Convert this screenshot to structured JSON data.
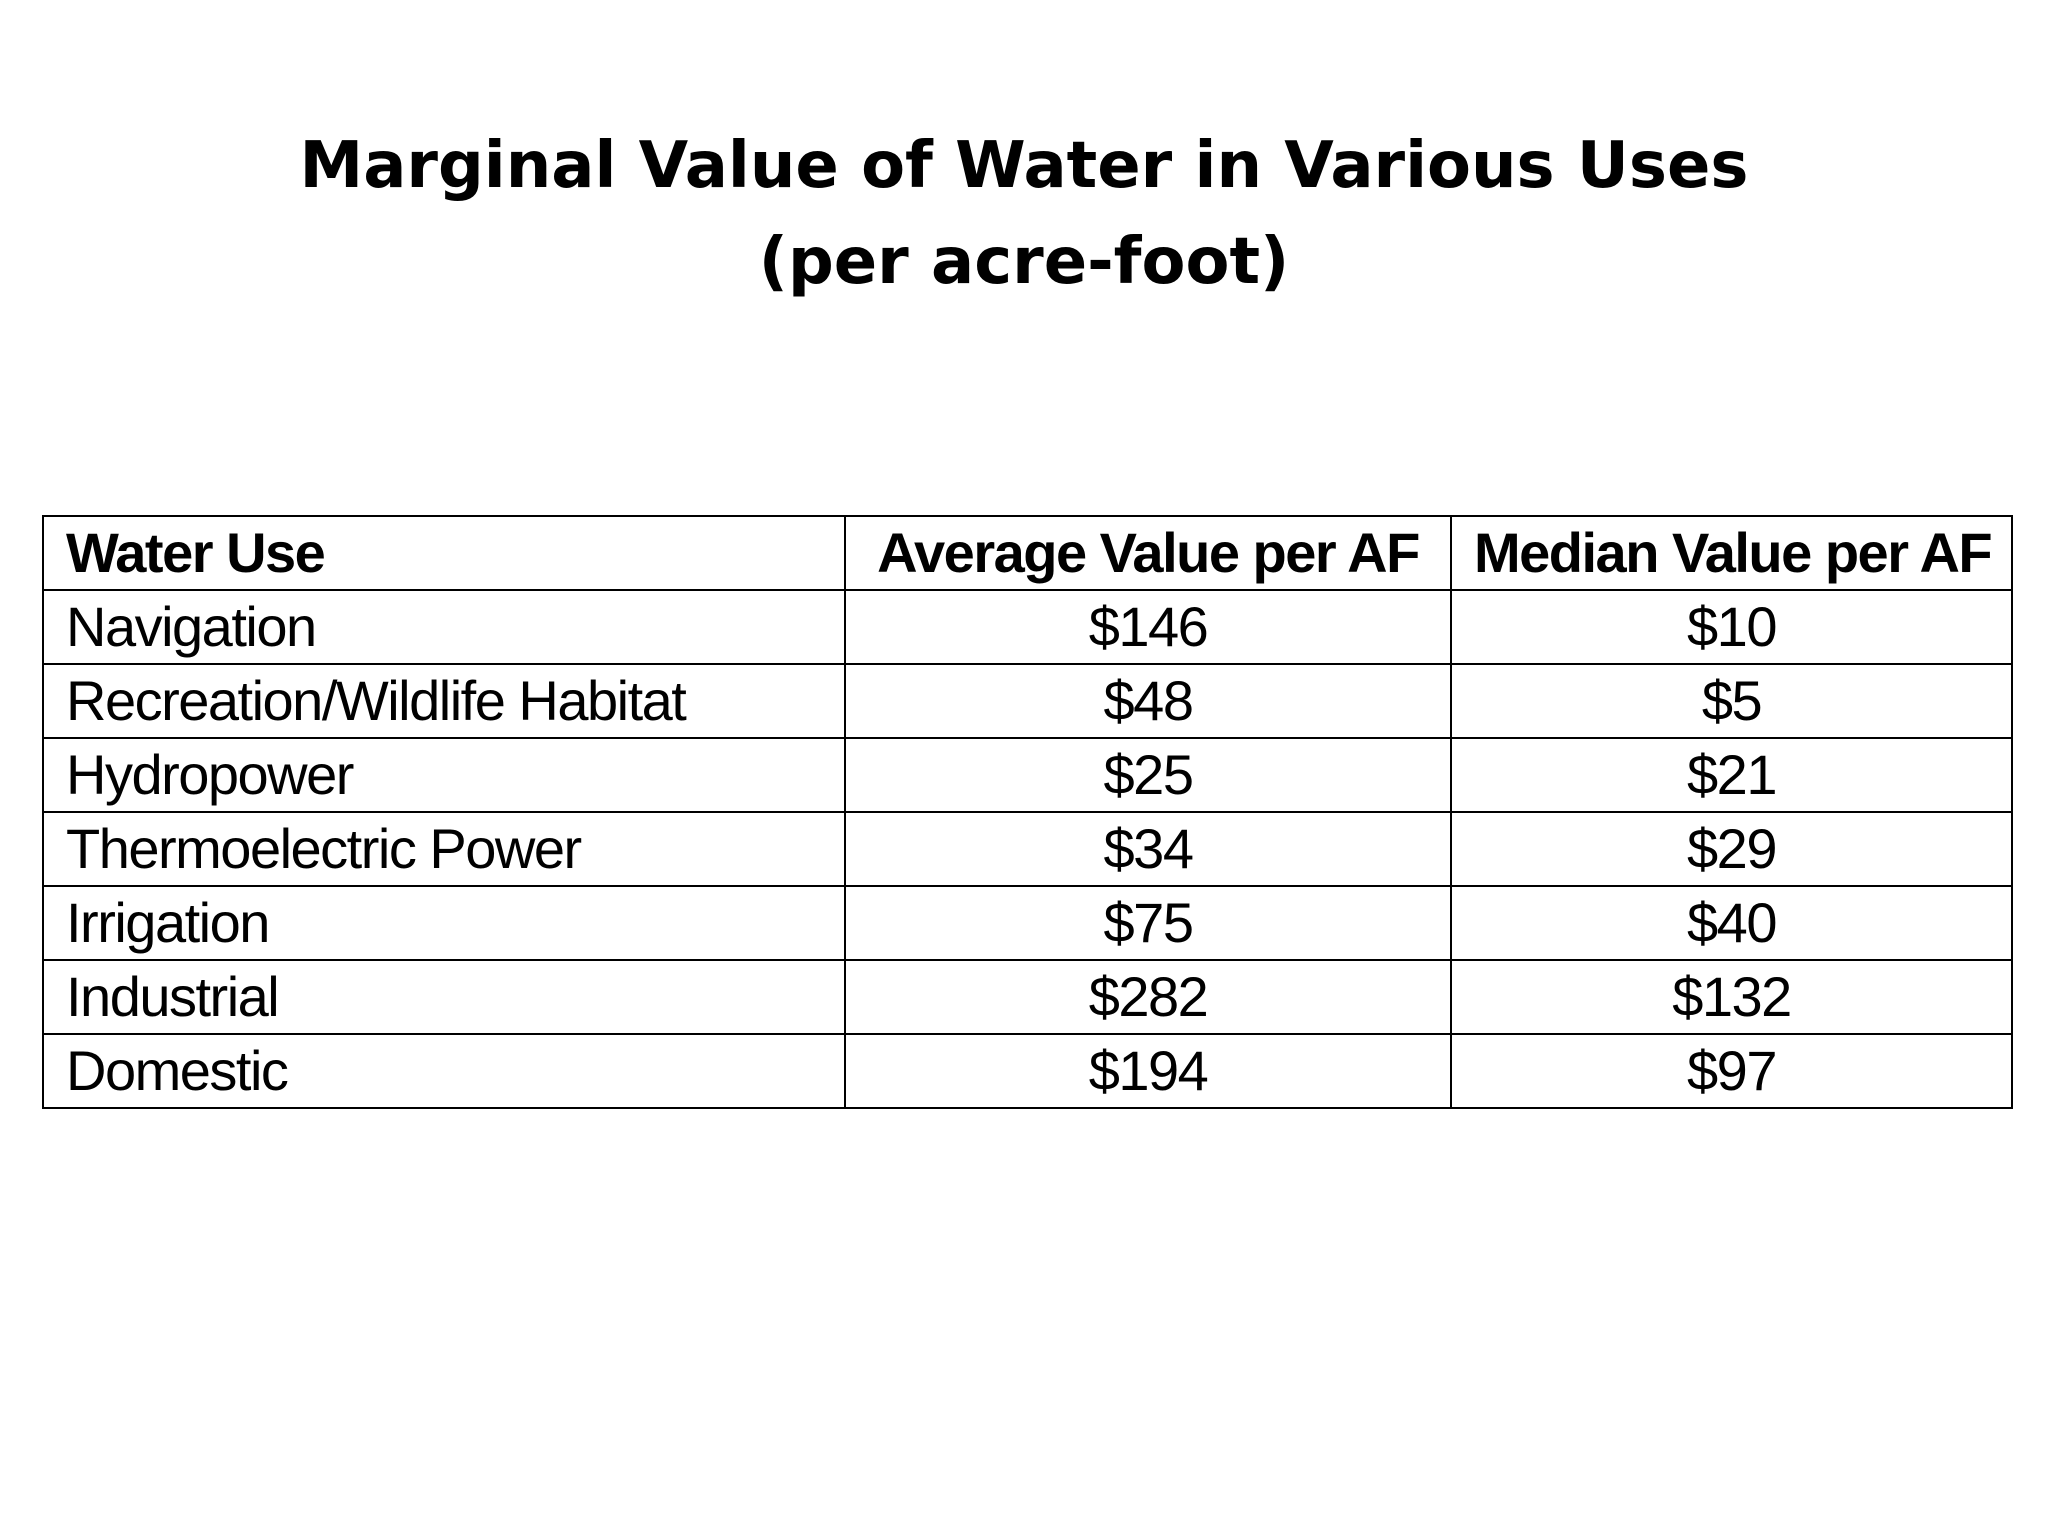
{
  "title": {
    "line1": "Marginal Value of Water in Various Uses",
    "line2": "(per acre-foot)"
  },
  "table": {
    "headers": {
      "water_use": "Water Use",
      "average": "Average Value per AF",
      "median": "Median Value per AF"
    },
    "rows": [
      {
        "use": "Navigation",
        "average": "$146",
        "median": "$10"
      },
      {
        "use": "Recreation/Wildlife Habitat",
        "average": "$48",
        "median": "$5"
      },
      {
        "use": "Hydropower",
        "average": "$25",
        "median": "$21"
      },
      {
        "use": "Thermoelectric Power",
        "average": "$34",
        "median": "$29"
      },
      {
        "use": "Irrigation",
        "average": "$75",
        "median": "$40"
      },
      {
        "use": "Industrial",
        "average": "$282",
        "median": "$132"
      },
      {
        "use": "Domestic",
        "average": "$194",
        "median": "$97"
      }
    ]
  }
}
